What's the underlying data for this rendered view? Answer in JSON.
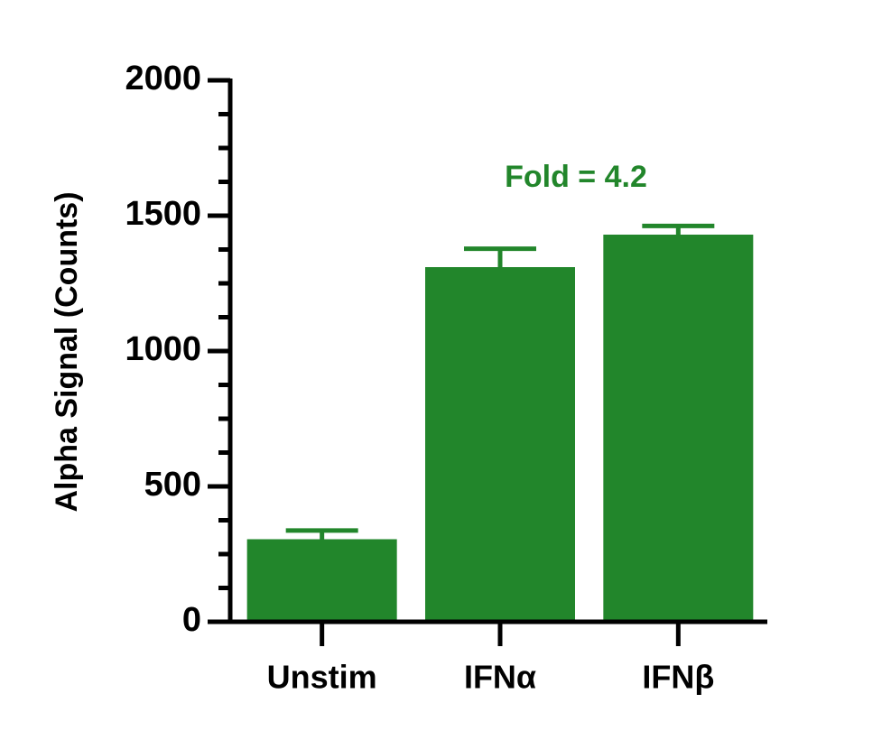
{
  "chart_data": {
    "type": "bar",
    "y_label": "Alpha Signal (Counts)",
    "categories": [
      "Unstim",
      "IFNα",
      "IFNβ"
    ],
    "values": [
      305,
      1310,
      1430
    ],
    "errors": [
      32,
      68,
      32
    ],
    "color": "#22862b",
    "annotation": "Fold = 4.2",
    "ylim": [
      0,
      2000
    ],
    "yticks": [
      0,
      500,
      1000,
      1500,
      2000
    ],
    "minor_yticks": [
      125,
      250,
      375,
      625,
      750,
      875,
      1125,
      1250,
      1375,
      1625,
      1750,
      1875
    ]
  }
}
